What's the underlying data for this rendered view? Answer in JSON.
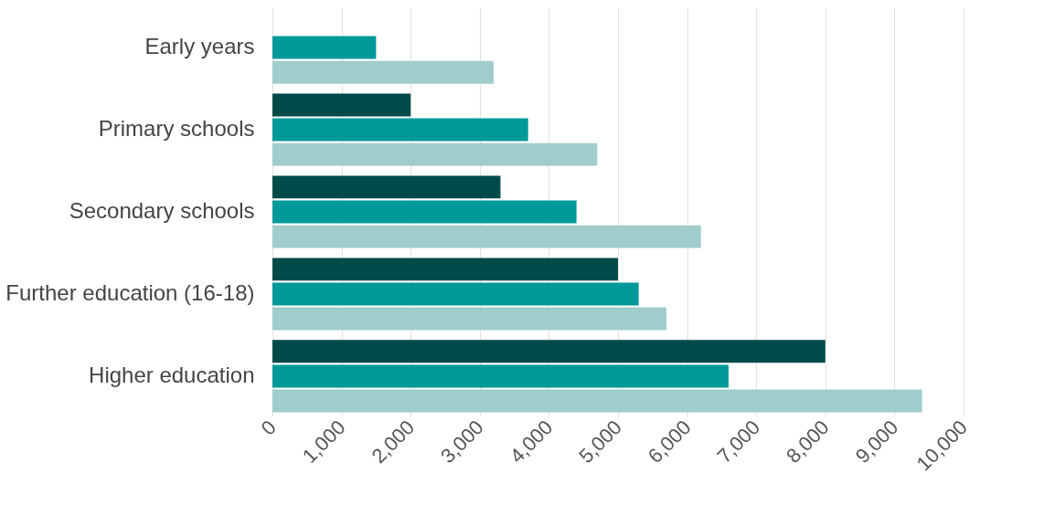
{
  "chart_data": {
    "type": "bar",
    "orientation": "horizontal",
    "categories": [
      "Early years",
      "Primary schools",
      "Secondary schools",
      "Further education (16-18)",
      "Higher education"
    ],
    "series": [
      {
        "color": "#004a4a",
        "values": [
          null,
          2000,
          3300,
          5000,
          8000
        ]
      },
      {
        "color": "#009999",
        "values": [
          1500,
          3700,
          4400,
          5300,
          6600
        ]
      },
      {
        "color": "#a0cccc",
        "values": [
          3200,
          4700,
          6200,
          5700,
          9400
        ]
      }
    ],
    "xlim": [
      0,
      10000
    ],
    "xticks": [
      0,
      {
        "value": 1000,
        "label": "1,000"
      },
      {
        "value": 2000,
        "label": "2,000"
      },
      {
        "value": 3000,
        "label": "3,000"
      },
      {
        "value": 4000,
        "label": "4,000"
      },
      {
        "value": 5000,
        "label": "5,000"
      },
      {
        "value": 6000,
        "label": "6,000"
      },
      {
        "value": 7000,
        "label": "7,000"
      },
      {
        "value": 8000,
        "label": "8,000"
      },
      {
        "value": 9000,
        "label": "9,000"
      },
      {
        "value": 10000,
        "label": "10,000"
      }
    ],
    "grid": "x",
    "legend": false
  }
}
